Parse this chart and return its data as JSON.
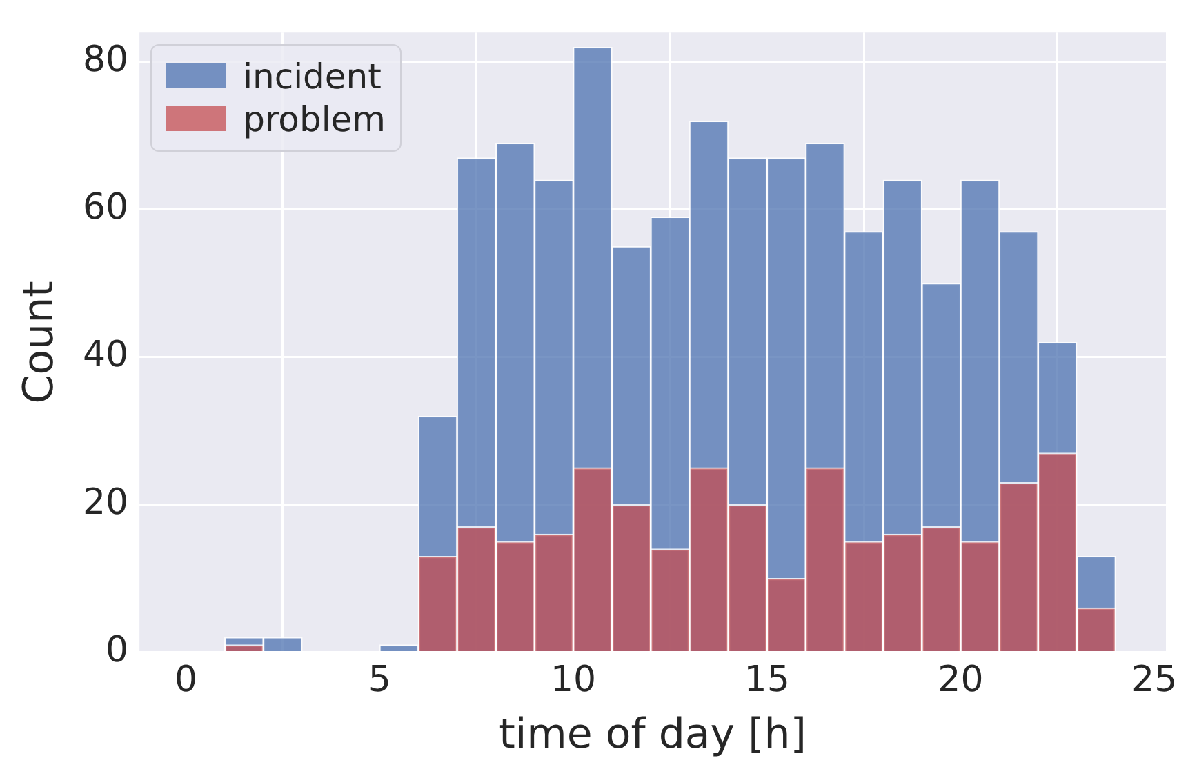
{
  "chart_data": {
    "type": "histogram",
    "xlabel": "time of day [h]",
    "ylabel": "Count",
    "bins": [
      1,
      2,
      3,
      4,
      5,
      6,
      7,
      8,
      9,
      10,
      11,
      12,
      13,
      14,
      15,
      16,
      17,
      18,
      19,
      20,
      21,
      22,
      23,
      24
    ],
    "series": [
      {
        "name": "incident",
        "color": "#4c72b0",
        "values": [
          2,
          2,
          0,
          0,
          1,
          32,
          67,
          69,
          64,
          82,
          55,
          59,
          72,
          67,
          67,
          69,
          57,
          64,
          50,
          64,
          57,
          42,
          13
        ]
      },
      {
        "name": "problem",
        "color": "#c44e52",
        "values": [
          1,
          0,
          0,
          0,
          0,
          13,
          17,
          15,
          16,
          25,
          20,
          14,
          25,
          20,
          10,
          25,
          15,
          16,
          17,
          15,
          23,
          27,
          6
        ]
      }
    ],
    "xlim": [
      -1.2,
      25.3
    ],
    "xticks": [
      0,
      5,
      10,
      15,
      20,
      25
    ],
    "ylim": [
      0,
      84
    ],
    "yticks": [
      0,
      20,
      40,
      60,
      80
    ],
    "grid": true,
    "legend": "top left"
  }
}
